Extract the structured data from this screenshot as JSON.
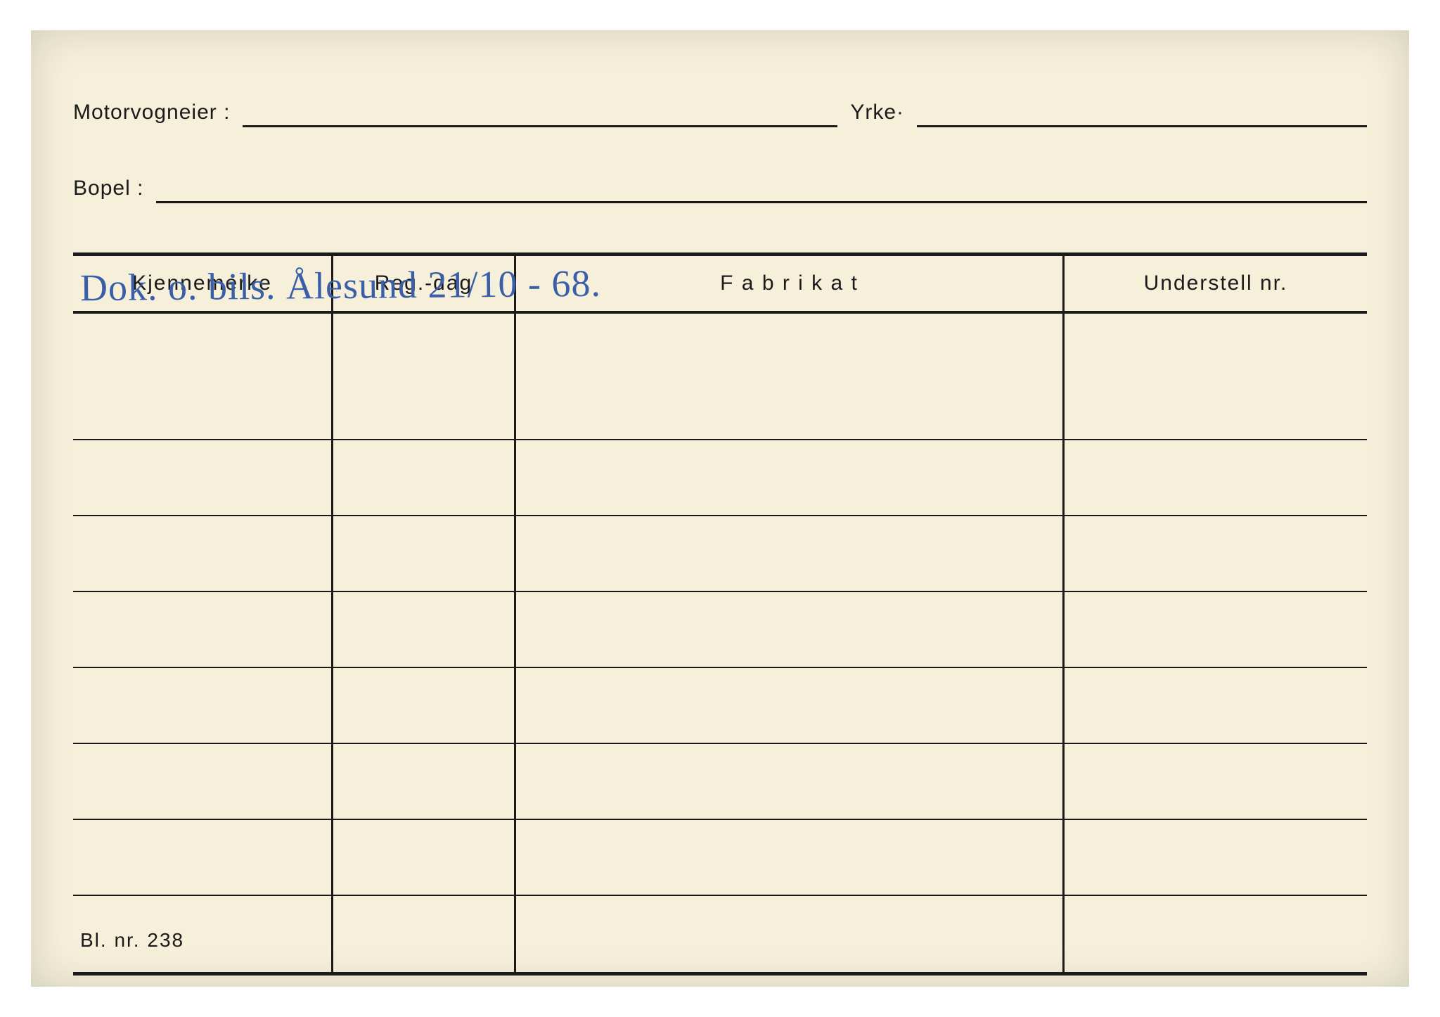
{
  "fields": {
    "owner_label": "Motorvogneier :",
    "occupation_label": "Yrke·",
    "residence_label": "Bopel :"
  },
  "table": {
    "headers": {
      "c1": "Kjennemerke",
      "c2": "Reg.-dag",
      "c3": "F a b r i k a t",
      "c4": "Understell nr."
    },
    "row_count": 8
  },
  "handwritten_entry": "Dok. o. bils.  Ålesund   21/10 - 68.",
  "form_footer": "Bl.  nr.  238",
  "colors": {
    "paper": "#f6f0da",
    "ink": "#1a1a1a",
    "pen": "#3a5fa8"
  }
}
